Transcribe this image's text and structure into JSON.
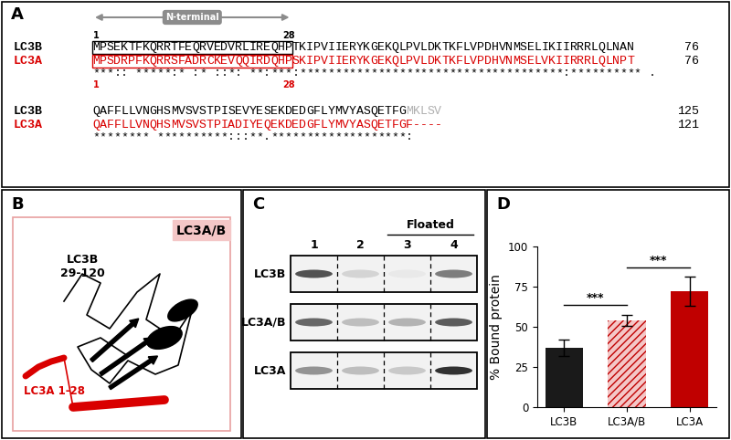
{
  "panel_labels": [
    "A",
    "B",
    "C",
    "D"
  ],
  "alignment": {
    "region_label": "N-terminal",
    "region_start": 1,
    "region_end": 28,
    "blocks": [
      {
        "rows": [
          {
            "name": "LC3B",
            "color": "#000000",
            "end": 76,
            "segments": [
              {
                "text": "MPSEKTFKQRRTFEQRVEDVRLIREQHPTKIPVIIERYKGEKQLPVLDKTKFLVPDHVNMSELIKIIRRRLQLNAN",
                "color": "#000000"
              }
            ]
          },
          {
            "name": "LC3A",
            "color": "#d90000",
            "end": 76,
            "segments": [
              {
                "text": "MPSDRPFKQRRSFADRCKEVQQIRDQHPSKIPVIIERYKGEKQLPVLDKTKFLVPDHVNMSELVKIIRRRLQLNPT",
                "color": "#d90000"
              }
            ]
          }
        ],
        "consensus": "***:: *****:* :* ::*: **:***:*************************************:********** ."
      },
      {
        "rows": [
          {
            "name": "LC3B",
            "color": "#000000",
            "end": 125,
            "segments": [
              {
                "text": "QAFFLLVNGHSMVSVSTPISEVYESEKDEDGFLYMVYASQETFG",
                "color": "#000000"
              },
              {
                "text": "MKLSV",
                "color": "#b0b0b0"
              }
            ]
          },
          {
            "name": "LC3A",
            "color": "#d90000",
            "end": 121,
            "segments": [
              {
                "text": "QAFFLLVNQHSMVSVSTPIADIYEQEKDEDGFLYMVYASQETFGF----",
                "color": "#d90000"
              }
            ]
          }
        ],
        "consensus": "******** **********:::**.*******************:"
      }
    ]
  },
  "structure": {
    "title": "LC3A/B",
    "lc3b_label": "LC3B\n29-120",
    "lc3a_label": "LC3A 1-28"
  },
  "blot": {
    "lanes": [
      1,
      2,
      3,
      4
    ],
    "floated_label": "Floated",
    "floated_lanes": [
      3,
      4
    ],
    "rows": [
      {
        "name": "LC3B",
        "bands": [
          0.8,
          0.2,
          0.1,
          0.6
        ]
      },
      {
        "name": "LC3A/B",
        "bands": [
          0.7,
          0.3,
          0.35,
          0.75
        ]
      },
      {
        "name": "LC3A",
        "bands": [
          0.5,
          0.3,
          0.25,
          0.95
        ]
      }
    ]
  },
  "chart_data": {
    "type": "bar",
    "categories": [
      "LC3B",
      "LC3A/B",
      "LC3A"
    ],
    "values": [
      37,
      54,
      72
    ],
    "errors": [
      5,
      3.5,
      9
    ],
    "colors": [
      "#1a1a1a",
      "#f4c7c7",
      "#c00000"
    ],
    "y_label": "% Bound protein",
    "ylim": [
      0,
      100
    ],
    "yticks": [
      0,
      25,
      50,
      75,
      100
    ],
    "significance": [
      {
        "between": [
          "LC3B",
          "LC3A/B"
        ],
        "label": "***"
      },
      {
        "between": [
          "LC3A/B",
          "LC3A"
        ],
        "label": "***"
      }
    ]
  }
}
